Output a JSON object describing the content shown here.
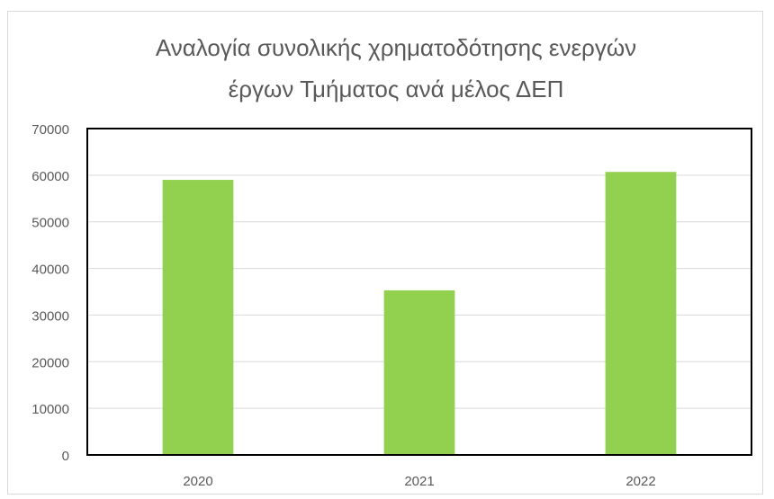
{
  "chart_data": {
    "type": "bar",
    "title": "Αναλογία συνολικής χρηματοδότησης ενεργών",
    "subtitle": "έργων Τμήματος ανά μέλος ΔΕΠ",
    "categories": [
      "2020",
      "2021",
      "2022"
    ],
    "values": [
      59000,
      35300,
      60700
    ],
    "ylim": [
      0,
      70000
    ],
    "yticks": [
      0,
      10000,
      20000,
      30000,
      40000,
      50000,
      60000,
      70000
    ],
    "xlabel": "",
    "ylabel": "",
    "grid": true,
    "legend": "none",
    "colors": {
      "bar": "#92d050",
      "gridline": "#d9d9d9",
      "plot_border": "#000000",
      "title_text": "#595959",
      "tick_text": "#595959"
    }
  }
}
